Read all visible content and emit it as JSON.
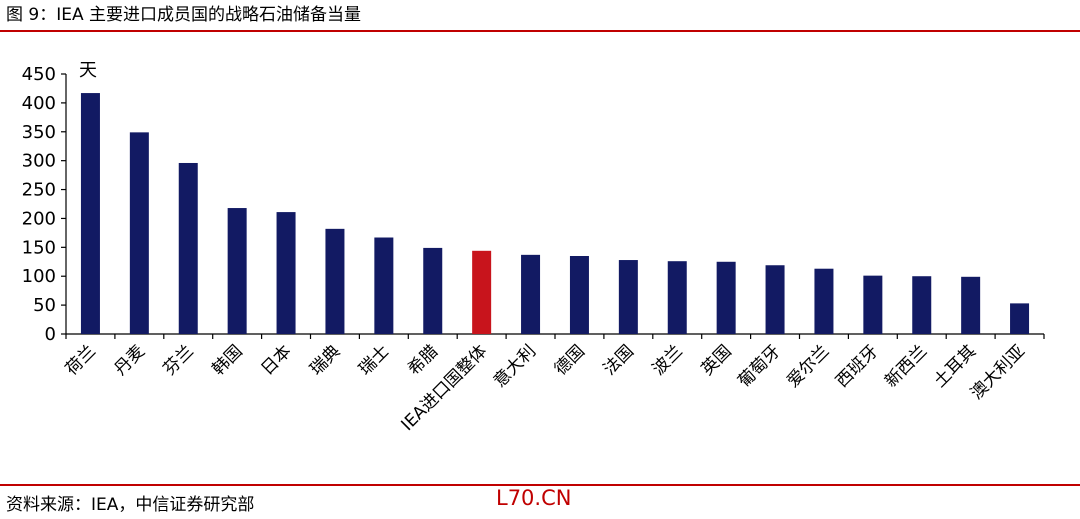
{
  "figure": {
    "title": "图 9：IEA 主要进口成员国的战略石油储备当量",
    "source": "资料来源：IEA，中信证券研究部",
    "watermark": "L70.CN"
  },
  "colors": {
    "bar": "#121a63",
    "highlight": "#c8141c",
    "rule": "#c00000"
  },
  "chart_data": {
    "type": "bar",
    "title": "",
    "xlabel": "",
    "ylabel": "天",
    "ylim": [
      0,
      450
    ],
    "yticks": [
      0,
      50,
      100,
      150,
      200,
      250,
      300,
      350,
      400,
      450
    ],
    "grid": false,
    "highlight_category": "IEA进口国整体",
    "categories": [
      "荷兰",
      "丹麦",
      "芬兰",
      "韩国",
      "日本",
      "瑞典",
      "瑞士",
      "希腊",
      "IEA进口国整体",
      "意大利",
      "德国",
      "法国",
      "波兰",
      "英国",
      "葡萄牙",
      "爱尔兰",
      "西班牙",
      "新西兰",
      "土耳其",
      "澳大利亚"
    ],
    "values": [
      417,
      349,
      296,
      218,
      211,
      182,
      167,
      149,
      144,
      137,
      135,
      128,
      126,
      125,
      119,
      113,
      101,
      100,
      99,
      53
    ]
  }
}
